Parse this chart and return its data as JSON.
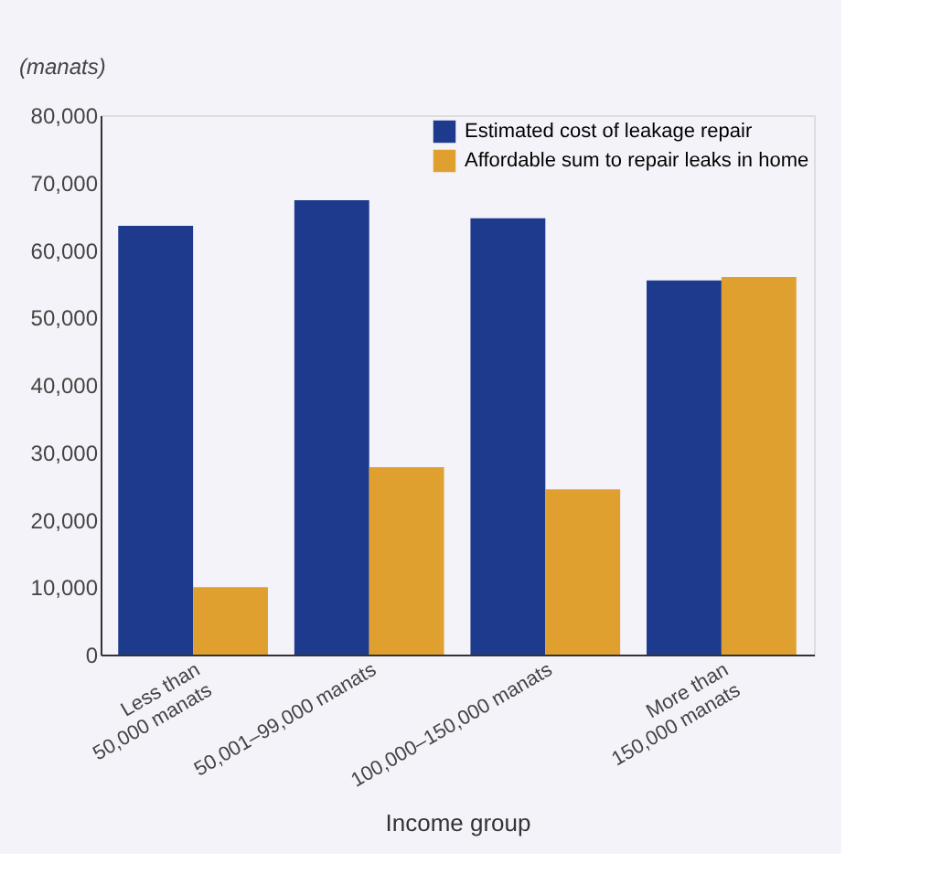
{
  "chart_data": {
    "type": "bar",
    "ylabel": "(manats)",
    "xlabel": "Income group",
    "categories": [
      "Less than\n50,000 manats",
      "50,001–99,000 manats",
      "100,000–150,000 manats",
      "More than\n150,000 manats"
    ],
    "series": [
      {
        "name": "Estimated cost of leakage repair",
        "color": "#1d3a8c",
        "values": [
          63600,
          67400,
          64700,
          55500
        ]
      },
      {
        "name": "Affordable sum to repair leaks in home",
        "color": "#e0a030",
        "values": [
          10000,
          27800,
          24500,
          56000
        ]
      }
    ],
    "ylim": [
      0,
      80000
    ],
    "yticks": [
      0,
      {
        "value": 10000,
        "label": "10,000"
      },
      {
        "value": 20000,
        "label": "20,000"
      },
      {
        "value": 30000,
        "label": "30,000"
      },
      {
        "value": 40000,
        "label": "40,000"
      },
      {
        "value": 50000,
        "label": "50,000"
      },
      {
        "value": 60000,
        "label": "60,000"
      },
      {
        "value": 70000,
        "label": "70,000"
      },
      {
        "value": 80000,
        "label": "80,000"
      }
    ],
    "grid": false,
    "legend": "top right"
  }
}
